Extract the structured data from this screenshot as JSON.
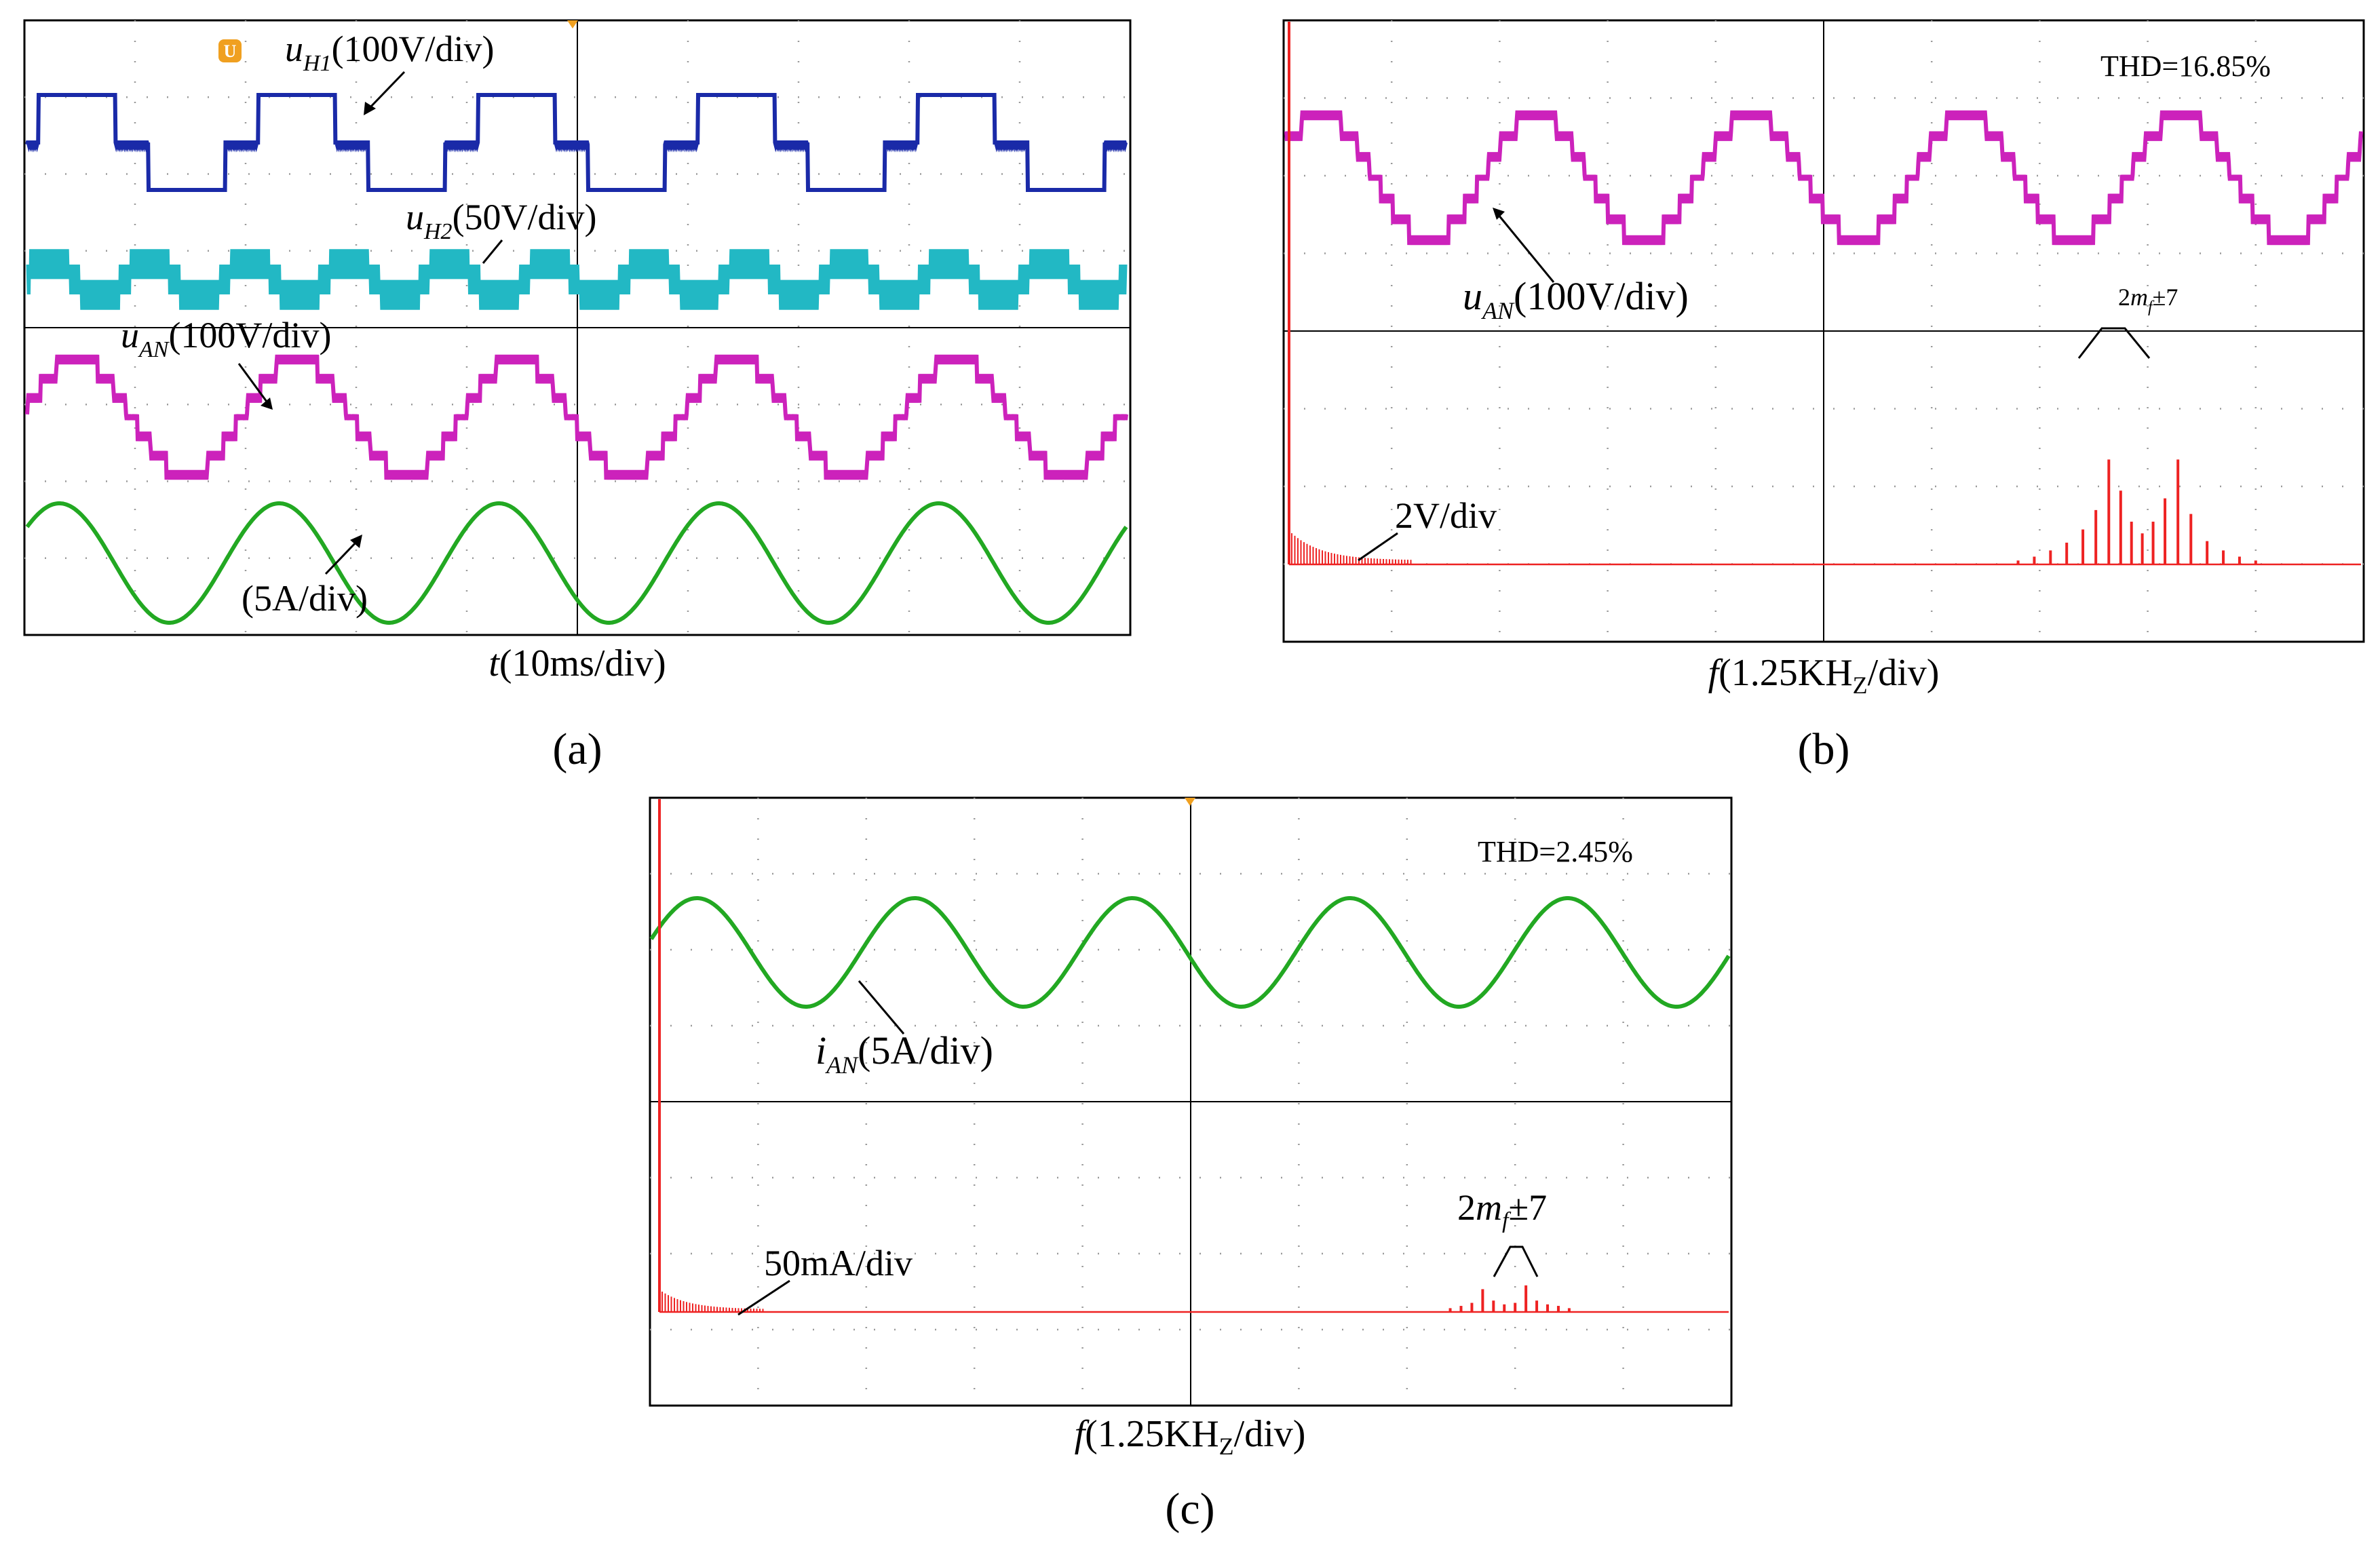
{
  "figure": {
    "panels": [
      {
        "id": "a",
        "caption": "(a)",
        "xlabel_var": "t",
        "xlabel_rest": "(10ms/div)"
      },
      {
        "id": "b",
        "caption": "(b)",
        "xlabel_var": "f",
        "xlabel_rest": "(1.25KH",
        "xlabel_sub": "Z",
        "xlabel_end": "/div)"
      },
      {
        "id": "c",
        "caption": "(c)",
        "xlabel_var": "f",
        "xlabel_rest": "(1.25KH",
        "xlabel_sub": "Z",
        "xlabel_end": "/div)"
      }
    ]
  },
  "colors": {
    "uH1": "#1a2aa8",
    "uH2": "#22b8c4",
    "uAN": "#cc22bb",
    "current": "#22a822",
    "spectrum": "#ee2222",
    "grid_dots": "#9a9a9a",
    "trigger_marker": "#f0a020"
  },
  "chart_data": [
    {
      "panel": "a",
      "type": "line",
      "title": "",
      "xlabel": "t(10ms/div)",
      "x_div_ms": 10,
      "x_divisions": 10,
      "cycles_shown": 5,
      "series": [
        {
          "name": "uH1",
          "label_var": "u",
          "label_sub": "H1",
          "label_scale": "(100V/div)",
          "waveform": "three-level quasi-square",
          "levels": [
            -1,
            0,
            1
          ]
        },
        {
          "name": "uH2",
          "label_var": "u",
          "label_sub": "H2",
          "label_scale": "(50V/div)",
          "waveform": "PWM multilevel",
          "levels": [
            -1,
            0,
            1
          ]
        },
        {
          "name": "uAN",
          "label_var": "u",
          "label_sub": "AN",
          "label_scale": "(100V/div)",
          "waveform": "staircase multilevel",
          "levels": [
            -3,
            -2,
            -1,
            0,
            1,
            2,
            3
          ]
        },
        {
          "name": "iAN",
          "label_var": "",
          "label_sub": "",
          "label_scale": "(5A/div)",
          "waveform": "sinusoidal",
          "levels": []
        }
      ]
    },
    {
      "panel": "b",
      "type": "line",
      "title": "",
      "xlabel": "f(1.25KHz/div)",
      "thd": "THD=16.85%",
      "x_div_khz": 1.25,
      "x_divisions": 10,
      "series": [
        {
          "name": "uAN",
          "label_var": "u",
          "label_sub": "AN",
          "label_scale": "(100V/div)",
          "waveform": "staircase multilevel"
        },
        {
          "name": "uAN spectrum",
          "label_scale": "2V/div",
          "annotation_pre": "2",
          "annotation_var": "m",
          "annotation_sub": "f",
          "annotation_post": "±7",
          "sideband_center_div": 7.9,
          "sideband_offsets_div": [
            -1.1,
            -0.95,
            -0.8,
            -0.65,
            -0.5,
            -0.38,
            -0.26,
            -0.15,
            -0.05,
            0.05,
            0.15,
            0.26,
            0.38,
            0.5,
            0.65,
            0.8,
            0.95,
            1.1
          ],
          "sideband_amplitudes_div": [
            0.05,
            0.1,
            0.18,
            0.28,
            0.45,
            0.7,
            1.35,
            0.95,
            0.55,
            0.4,
            0.55,
            0.85,
            1.35,
            0.65,
            0.3,
            0.18,
            0.1,
            0.05
          ]
        }
      ]
    },
    {
      "panel": "c",
      "type": "line",
      "title": "",
      "xlabel": "f(1.25KHz/div)",
      "thd": "THD=2.45%",
      "x_div_khz": 1.25,
      "x_divisions": 10,
      "series": [
        {
          "name": "iAN",
          "label_var": "i",
          "label_sub": "AN",
          "label_scale": "(5A/div)",
          "waveform": "sinusoidal"
        },
        {
          "name": "iAN spectrum",
          "label_scale": "50mA/div",
          "annotation_pre": "2",
          "annotation_var": "m",
          "annotation_sub": "f",
          "annotation_post": "±7",
          "sideband_center_div": 7.95,
          "sideband_offsets_div": [
            -0.55,
            -0.45,
            -0.35,
            -0.25,
            -0.15,
            -0.05,
            0.05,
            0.15,
            0.25,
            0.35,
            0.45,
            0.55
          ],
          "sideband_amplitudes_div": [
            0.05,
            0.08,
            0.12,
            0.3,
            0.15,
            0.1,
            0.12,
            0.35,
            0.15,
            0.1,
            0.08,
            0.05
          ]
        }
      ]
    }
  ]
}
